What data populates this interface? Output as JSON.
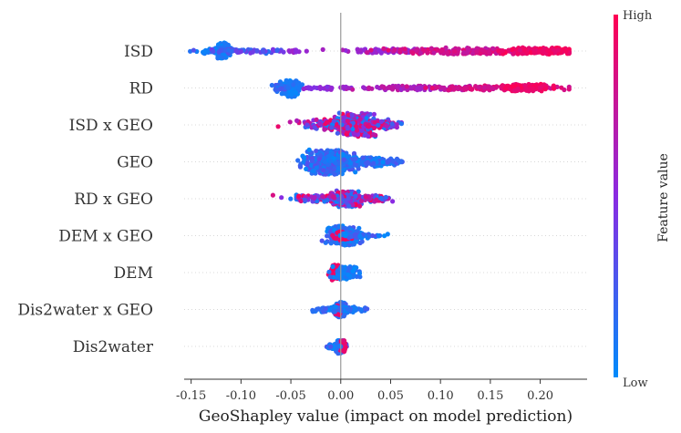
{
  "chart_data": {
    "type": "scatter",
    "title": "",
    "xlabel": "GeoShapley value (impact on model prediction)",
    "ylabel": "",
    "xlim": [
      -0.157,
      0.247
    ],
    "x_ticks": [
      -0.15,
      -0.1,
      -0.05,
      0.0,
      0.05,
      0.1,
      0.15,
      0.2
    ],
    "x_tick_labels": [
      "-0.15",
      "-0.10",
      "-0.05",
      "0.00",
      "0.05",
      "0.10",
      "0.15",
      "0.20"
    ],
    "zero_line": 0.0,
    "grid": false,
    "colorbar": {
      "title": "Feature value",
      "high_label": "High",
      "low_label": "Low",
      "high_color": "#ff0052",
      "mid_color": "#8a2be2",
      "low_color": "#008bfb",
      "placement": "right"
    },
    "features": [
      {
        "name": "ISD",
        "clusters": [
          {
            "x": -0.118,
            "spread": 0.003,
            "count": 220,
            "width": 0.62,
            "value": [
              0.0,
              0.15
            ]
          },
          {
            "x": -0.127,
            "spread": 0.006,
            "count": 40,
            "width": 0.2,
            "value": [
              0.0,
              0.2
            ]
          },
          {
            "x": -0.09,
            "spread": 0.02,
            "count": 60,
            "width": 0.18,
            "value": [
              0.1,
              0.45
            ]
          },
          {
            "x": -0.045,
            "spread": 0.006,
            "count": 12,
            "width": 0.1,
            "value": [
              0.5,
              0.6
            ]
          },
          {
            "x": 0.045,
            "spread": 0.025,
            "count": 80,
            "width": 0.18,
            "value": [
              0.5,
              0.65
            ]
          },
          {
            "x": 0.12,
            "spread": 0.035,
            "count": 160,
            "width": 0.25,
            "value": [
              0.7,
              0.9
            ]
          },
          {
            "x": 0.2,
            "spread": 0.017,
            "count": 160,
            "width": 0.28,
            "value": [
              0.85,
              1.0
            ]
          }
        ]
      },
      {
        "name": "RD",
        "clusters": [
          {
            "x": -0.05,
            "spread": 0.005,
            "count": 200,
            "width": 0.68,
            "value": [
              0.0,
              0.15
            ]
          },
          {
            "x": -0.06,
            "spread": 0.005,
            "count": 40,
            "width": 0.25,
            "value": [
              0.1,
              0.3
            ]
          },
          {
            "x": -0.01,
            "spread": 0.012,
            "count": 30,
            "width": 0.12,
            "value": [
              0.45,
              0.6
            ]
          },
          {
            "x": 0.075,
            "spread": 0.03,
            "count": 110,
            "width": 0.16,
            "value": [
              0.55,
              0.75
            ]
          },
          {
            "x": 0.155,
            "spread": 0.03,
            "count": 120,
            "width": 0.18,
            "value": [
              0.75,
              0.9
            ]
          },
          {
            "x": 0.185,
            "spread": 0.012,
            "count": 110,
            "width": 0.3,
            "value": [
              0.88,
              1.0
            ]
          }
        ]
      },
      {
        "name": "ISD x GEO",
        "clusters": [
          {
            "x": 0.017,
            "spread": 0.009,
            "count": 420,
            "width": 0.9,
            "value": [
              0.0,
              1.0
            ]
          },
          {
            "x": -0.005,
            "spread": 0.018,
            "count": 160,
            "width": 0.45,
            "value": [
              0.0,
              1.0
            ]
          },
          {
            "x": 0.04,
            "spread": 0.01,
            "count": 90,
            "width": 0.3,
            "value": [
              0.0,
              1.0
            ]
          }
        ]
      },
      {
        "name": "GEO",
        "clusters": [
          {
            "x": -0.012,
            "spread": 0.01,
            "count": 520,
            "width": 0.95,
            "value": [
              0.0,
              0.35
            ]
          },
          {
            "x": 0.02,
            "spread": 0.013,
            "count": 160,
            "width": 0.4,
            "value": [
              0.0,
              0.3
            ]
          },
          {
            "x": 0.05,
            "spread": 0.007,
            "count": 40,
            "width": 0.15,
            "value": [
              0.0,
              0.3
            ]
          }
        ]
      },
      {
        "name": "RD x GEO",
        "clusters": [
          {
            "x": 0.005,
            "spread": 0.006,
            "count": 220,
            "width": 0.6,
            "value": [
              0.0,
              1.0
            ]
          },
          {
            "x": -0.015,
            "spread": 0.017,
            "count": 140,
            "width": 0.3,
            "value": [
              0.0,
              1.0
            ]
          },
          {
            "x": 0.03,
            "spread": 0.009,
            "count": 80,
            "width": 0.25,
            "value": [
              0.0,
              1.0
            ]
          }
        ]
      },
      {
        "name": "DEM x GEO",
        "clusters": [
          {
            "x": 0.002,
            "spread": 0.007,
            "count": 320,
            "width": 0.75,
            "value": [
              0.0,
              0.3
            ]
          },
          {
            "x": 0.003,
            "spread": 0.004,
            "count": 40,
            "width": 0.35,
            "value": [
              0.85,
              1.0
            ]
          },
          {
            "x": 0.02,
            "spread": 0.01,
            "count": 60,
            "width": 0.2,
            "value": [
              0.0,
              0.3
            ]
          }
        ]
      },
      {
        "name": "DEM",
        "clusters": [
          {
            "x": -0.007,
            "spread": 0.002,
            "count": 90,
            "width": 0.6,
            "value": [
              0.85,
              1.0
            ]
          },
          {
            "x": 0.005,
            "spread": 0.006,
            "count": 130,
            "width": 0.5,
            "value": [
              0.0,
              0.2
            ]
          }
        ]
      },
      {
        "name": "Dis2water x GEO",
        "clusters": [
          {
            "x": -0.001,
            "spread": 0.003,
            "count": 220,
            "width": 0.6,
            "value": [
              0.0,
              0.25
            ]
          },
          {
            "x": -0.002,
            "spread": 0.0015,
            "count": 40,
            "width": 0.4,
            "value": [
              0.8,
              1.0
            ]
          },
          {
            "x": 0.01,
            "spread": 0.006,
            "count": 50,
            "width": 0.2,
            "value": [
              0.0,
              0.25
            ]
          },
          {
            "x": -0.015,
            "spread": 0.006,
            "count": 40,
            "width": 0.2,
            "value": [
              0.0,
              0.25
            ]
          }
        ]
      },
      {
        "name": "Dis2water",
        "clusters": [
          {
            "x": 0.0,
            "spread": 0.002,
            "count": 180,
            "width": 0.55,
            "value": [
              0.0,
              0.3
            ]
          },
          {
            "x": 0.002,
            "spread": 0.0015,
            "count": 70,
            "width": 0.45,
            "value": [
              0.85,
              1.0
            ]
          },
          {
            "x": -0.008,
            "spread": 0.003,
            "count": 40,
            "width": 0.2,
            "value": [
              0.0,
              0.3
            ]
          }
        ]
      }
    ]
  }
}
